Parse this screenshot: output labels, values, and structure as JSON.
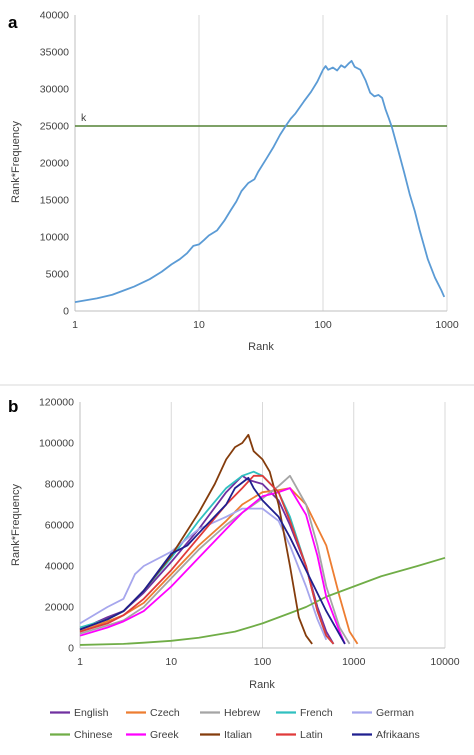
{
  "chart_data": [
    {
      "panel_label": "a",
      "type": "line",
      "xlabel": "Rank",
      "ylabel": "Rank*Frequency",
      "xscale": "log",
      "xlim": [
        1,
        1000
      ],
      "ylim": [
        0,
        40000
      ],
      "xticks": [
        1,
        10,
        100,
        1000
      ],
      "xtick_labels": [
        "1",
        "10",
        "100",
        "1000"
      ],
      "yticks": [
        0,
        5000,
        10000,
        15000,
        20000,
        25000,
        30000,
        35000,
        40000
      ],
      "ytick_labels": [
        "0",
        "5000",
        "10000",
        "15000",
        "20000",
        "25000",
        "30000",
        "35000",
        "40000"
      ],
      "grid": "vertical",
      "series": [
        {
          "color": "#5b9bd5",
          "points": [
            [
              1,
              1200
            ],
            [
              1.5,
              1700
            ],
            [
              2,
              2200
            ],
            [
              3,
              3300
            ],
            [
              4,
              4300
            ],
            [
              5,
              5300
            ],
            [
              6,
              6300
            ],
            [
              7,
              7000
            ],
            [
              8,
              7800
            ],
            [
              9,
              8800
            ],
            [
              10,
              9000
            ],
            [
              11,
              9600
            ],
            [
              12,
              10200
            ],
            [
              14,
              10900
            ],
            [
              16,
              12200
            ],
            [
              18,
              13600
            ],
            [
              20,
              14800
            ],
            [
              22,
              16200
            ],
            [
              25,
              17300
            ],
            [
              28,
              17800
            ],
            [
              30,
              18800
            ],
            [
              35,
              20600
            ],
            [
              40,
              22200
            ],
            [
              45,
              23800
            ],
            [
              50,
              25000
            ],
            [
              55,
              26000
            ],
            [
              60,
              26700
            ],
            [
              70,
              28300
            ],
            [
              80,
              29600
            ],
            [
              90,
              31000
            ],
            [
              100,
              32600
            ],
            [
              105,
              33100
            ],
            [
              110,
              32600
            ],
            [
              120,
              32900
            ],
            [
              130,
              32500
            ],
            [
              140,
              33200
            ],
            [
              150,
              32900
            ],
            [
              160,
              33400
            ],
            [
              170,
              33800
            ],
            [
              180,
              33000
            ],
            [
              200,
              32600
            ],
            [
              220,
              31200
            ],
            [
              240,
              29500
            ],
            [
              260,
              29000
            ],
            [
              280,
              29200
            ],
            [
              300,
              28800
            ],
            [
              320,
              27200
            ],
            [
              340,
              26000
            ],
            [
              360,
              24800
            ],
            [
              400,
              22000
            ],
            [
              450,
              18800
            ],
            [
              500,
              15800
            ],
            [
              550,
              13500
            ],
            [
              600,
              11000
            ],
            [
              700,
              7000
            ],
            [
              800,
              4500
            ],
            [
              900,
              2800
            ],
            [
              950,
              1900
            ]
          ]
        }
      ],
      "annotations": [
        {
          "type": "hline",
          "y": 25000,
          "label": "k",
          "color": "#548235"
        }
      ]
    },
    {
      "panel_label": "b",
      "type": "line",
      "xlabel": "Rank",
      "ylabel": "Rank*Frequency",
      "xscale": "log",
      "xlim": [
        1,
        10000
      ],
      "ylim": [
        0,
        120000
      ],
      "xticks": [
        1,
        10,
        100,
        1000,
        10000
      ],
      "xtick_labels": [
        "1",
        "10",
        "100",
        "1000",
        "10000"
      ],
      "yticks": [
        0,
        20000,
        40000,
        60000,
        80000,
        100000,
        120000
      ],
      "ytick_labels": [
        "0",
        "20000",
        "40000",
        "60000",
        "80000",
        "100000",
        "120000"
      ],
      "grid": "vertical",
      "legend": "bottom",
      "series": [
        {
          "name": "English",
          "color": "#7030a0",
          "points": [
            [
              1,
              9000
            ],
            [
              2,
              15000
            ],
            [
              3,
              18000
            ],
            [
              5,
              27000
            ],
            [
              10,
              42000
            ],
            [
              20,
              58000
            ],
            [
              40,
              76000
            ],
            [
              60,
              84000
            ],
            [
              70,
              82000
            ],
            [
              100,
              80000
            ],
            [
              150,
              72000
            ],
            [
              200,
              60000
            ],
            [
              300,
              40000
            ],
            [
              400,
              20000
            ],
            [
              500,
              8000
            ],
            [
              600,
              2000
            ]
          ]
        },
        {
          "name": "Czech",
          "color": "#ed7d31",
          "points": [
            [
              1,
              8000
            ],
            [
              2,
              13000
            ],
            [
              3,
              16000
            ],
            [
              5,
              22000
            ],
            [
              10,
              36000
            ],
            [
              20,
              50000
            ],
            [
              40,
              62000
            ],
            [
              60,
              70000
            ],
            [
              100,
              76000
            ],
            [
              150,
              77000
            ],
            [
              200,
              78000
            ],
            [
              300,
              70000
            ],
            [
              500,
              50000
            ],
            [
              700,
              25000
            ],
            [
              900,
              8000
            ],
            [
              1100,
              2000
            ]
          ]
        },
        {
          "name": "Hebrew",
          "color": "#a5a5a5",
          "points": [
            [
              1,
              7000
            ],
            [
              2,
              11000
            ],
            [
              3,
              13500
            ],
            [
              5,
              20000
            ],
            [
              10,
              34000
            ],
            [
              20,
              48000
            ],
            [
              40,
              60000
            ],
            [
              60,
              66000
            ],
            [
              100,
              73000
            ],
            [
              150,
              79000
            ],
            [
              200,
              84000
            ],
            [
              300,
              70000
            ],
            [
              400,
              50000
            ],
            [
              500,
              30000
            ],
            [
              700,
              10000
            ],
            [
              900,
              2000
            ]
          ]
        },
        {
          "name": "French",
          "color": "#30c0c0",
          "points": [
            [
              1,
              10000
            ],
            [
              2,
              14000
            ],
            [
              3,
              18000
            ],
            [
              5,
              28000
            ],
            [
              10,
              44000
            ],
            [
              20,
              62000
            ],
            [
              40,
              78000
            ],
            [
              60,
              84000
            ],
            [
              80,
              86000
            ],
            [
              100,
              84000
            ],
            [
              150,
              76000
            ],
            [
              200,
              64000
            ],
            [
              300,
              40000
            ],
            [
              400,
              18000
            ],
            [
              500,
              6000
            ],
            [
              600,
              2000
            ]
          ]
        },
        {
          "name": "German",
          "color": "#a6a6ed",
          "points": [
            [
              1,
              12000
            ],
            [
              2,
              20000
            ],
            [
              3,
              24000
            ],
            [
              4,
              36000
            ],
            [
              5,
              40000
            ],
            [
              10,
              47000
            ],
            [
              20,
              58000
            ],
            [
              40,
              64000
            ],
            [
              60,
              68000
            ],
            [
              100,
              68000
            ],
            [
              150,
              62000
            ],
            [
              200,
              50000
            ],
            [
              300,
              30000
            ],
            [
              400,
              14000
            ],
            [
              500,
              4000
            ]
          ]
        },
        {
          "name": "Chinese",
          "color": "#70ad47",
          "points": [
            [
              1,
              1500
            ],
            [
              3,
              2000
            ],
            [
              5,
              2600
            ],
            [
              10,
              3500
            ],
            [
              20,
              5000
            ],
            [
              50,
              8000
            ],
            [
              100,
              12000
            ],
            [
              200,
              17000
            ],
            [
              300,
              20000
            ],
            [
              500,
              25000
            ],
            [
              1000,
              30000
            ],
            [
              2000,
              35000
            ],
            [
              5000,
              40000
            ],
            [
              10000,
              44000
            ]
          ]
        },
        {
          "name": "Greek",
          "color": "#ff00ff",
          "points": [
            [
              1,
              6000
            ],
            [
              2,
              10000
            ],
            [
              3,
              13000
            ],
            [
              5,
              18000
            ],
            [
              10,
              30000
            ],
            [
              20,
              44000
            ],
            [
              40,
              58000
            ],
            [
              60,
              66000
            ],
            [
              100,
              74000
            ],
            [
              150,
              76000
            ],
            [
              200,
              78000
            ],
            [
              300,
              65000
            ],
            [
              400,
              45000
            ],
            [
              500,
              25000
            ],
            [
              700,
              8000
            ],
            [
              800,
              2000
            ]
          ]
        },
        {
          "name": "Italian",
          "color": "#843c0c",
          "points": [
            [
              1,
              9000
            ],
            [
              2,
              14000
            ],
            [
              3,
              18000
            ],
            [
              5,
              28000
            ],
            [
              10,
              45000
            ],
            [
              20,
              66000
            ],
            [
              30,
              80000
            ],
            [
              40,
              92000
            ],
            [
              50,
              98000
            ],
            [
              60,
              100000
            ],
            [
              70,
              104000
            ],
            [
              80,
              96000
            ],
            [
              100,
              92000
            ],
            [
              120,
              86000
            ],
            [
              150,
              70000
            ],
            [
              200,
              40000
            ],
            [
              250,
              15000
            ],
            [
              300,
              6000
            ],
            [
              350,
              2000
            ]
          ]
        },
        {
          "name": "Latin",
          "color": "#e03a3a",
          "points": [
            [
              1,
              8000
            ],
            [
              2,
              12000
            ],
            [
              3,
              16000
            ],
            [
              5,
              24000
            ],
            [
              10,
              38000
            ],
            [
              20,
              54000
            ],
            [
              40,
              70000
            ],
            [
              60,
              78000
            ],
            [
              80,
              84000
            ],
            [
              100,
              84000
            ],
            [
              150,
              76000
            ],
            [
              200,
              62000
            ],
            [
              300,
              40000
            ],
            [
              400,
              18000
            ],
            [
              500,
              6000
            ],
            [
              600,
              2000
            ]
          ]
        },
        {
          "name": "Afrikaans",
          "color": "#1f1f8f",
          "points": [
            [
              1,
              9000
            ],
            [
              2,
              14000
            ],
            [
              3,
              18000
            ],
            [
              5,
              28000
            ],
            [
              10,
              46000
            ],
            [
              15,
              50000
            ],
            [
              20,
              56000
            ],
            [
              40,
              70000
            ],
            [
              50,
              78000
            ],
            [
              70,
              83000
            ],
            [
              80,
              78000
            ],
            [
              100,
              72000
            ],
            [
              150,
              64000
            ],
            [
              200,
              54000
            ],
            [
              300,
              38000
            ],
            [
              500,
              18000
            ],
            [
              800,
              2000
            ]
          ]
        }
      ]
    }
  ]
}
